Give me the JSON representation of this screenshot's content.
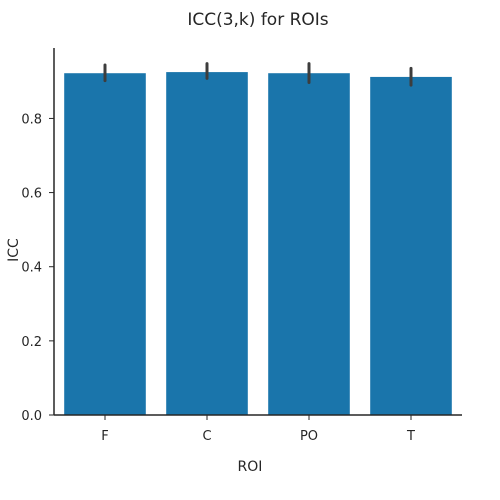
{
  "chart_data": {
    "type": "bar",
    "title": "ICC(3,k) for ROIs",
    "xlabel": "ROI",
    "ylabel": "ICC",
    "categories": [
      "F",
      "C",
      "PO",
      "T"
    ],
    "values": [
      0.922,
      0.925,
      0.922,
      0.912
    ],
    "error_low": [
      0.902,
      0.908,
      0.897,
      0.89
    ],
    "error_high": [
      0.944,
      0.948,
      0.948,
      0.935
    ],
    "ylim": [
      0,
      0.99
    ],
    "yticks": [
      0.0,
      0.2,
      0.4,
      0.6,
      0.8
    ],
    "ytick_labels": [
      "0.0",
      "0.2",
      "0.4",
      "0.6",
      "0.8"
    ],
    "grid": false,
    "bar_color": "#1a75ab",
    "errorbar_color": "#3d3d3d"
  }
}
